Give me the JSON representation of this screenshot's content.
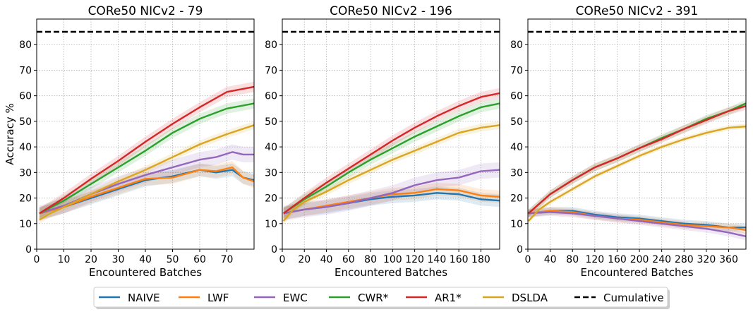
{
  "chart_data": [
    {
      "type": "line",
      "title": "CORe50 NICv2 - 79",
      "xlabel": "Encountered Batches",
      "ylabel": "Accuracy %",
      "xlim": [
        0,
        80
      ],
      "ylim": [
        0,
        90
      ],
      "xticks": [
        0,
        10,
        20,
        30,
        40,
        50,
        60,
        70
      ],
      "yticks": [
        0,
        10,
        20,
        30,
        40,
        50,
        60,
        70,
        80
      ],
      "grid": true,
      "series": [
        {
          "name": "NAIVE",
          "color": "#1f77b4",
          "band": 2.5,
          "points": [
            [
              1,
              14
            ],
            [
              10,
              16.5
            ],
            [
              20,
              20
            ],
            [
              30,
              23.5
            ],
            [
              40,
              27
            ],
            [
              50,
              28.5
            ],
            [
              60,
              31
            ],
            [
              66,
              30
            ],
            [
              72,
              31
            ],
            [
              76,
              28
            ],
            [
              80,
              27
            ]
          ]
        },
        {
          "name": "LWF",
          "color": "#ff7f0e",
          "band": 2.5,
          "points": [
            [
              1,
              14
            ],
            [
              10,
              16.5
            ],
            [
              20,
              20.5
            ],
            [
              30,
              24
            ],
            [
              40,
              27.5
            ],
            [
              50,
              28
            ],
            [
              60,
              31
            ],
            [
              66,
              30.5
            ],
            [
              72,
              32
            ],
            [
              76,
              28
            ],
            [
              80,
              26.5
            ]
          ]
        },
        {
          "name": "EWC",
          "color": "#9467bd",
          "band": 3,
          "points": [
            [
              1,
              14
            ],
            [
              10,
              17
            ],
            [
              20,
              21.5
            ],
            [
              30,
              25.5
            ],
            [
              40,
              29
            ],
            [
              50,
              32
            ],
            [
              60,
              35
            ],
            [
              66,
              36
            ],
            [
              72,
              38
            ],
            [
              76,
              37
            ],
            [
              80,
              37
            ]
          ]
        },
        {
          "name": "CWR*",
          "color": "#2ca02c",
          "band": 2,
          "points": [
            [
              1,
              14
            ],
            [
              10,
              19
            ],
            [
              20,
              25.5
            ],
            [
              30,
              32
            ],
            [
              40,
              38.5
            ],
            [
              50,
              45.5
            ],
            [
              60,
              51
            ],
            [
              70,
              55
            ],
            [
              80,
              57
            ]
          ]
        },
        {
          "name": "AR1*",
          "color": "#d62728",
          "band": 2,
          "points": [
            [
              1,
              14
            ],
            [
              10,
              20
            ],
            [
              20,
              27.5
            ],
            [
              30,
              34.5
            ],
            [
              40,
              42
            ],
            [
              50,
              49
            ],
            [
              60,
              55.5
            ],
            [
              70,
              61.5
            ],
            [
              80,
              63.5
            ]
          ]
        },
        {
          "name": "DSLDA",
          "color": "#daa520",
          "band": 1.5,
          "points": [
            [
              1,
              11.5
            ],
            [
              5,
              14
            ],
            [
              10,
              16.5
            ],
            [
              20,
              21.5
            ],
            [
              30,
              26.5
            ],
            [
              40,
              31
            ],
            [
              50,
              36
            ],
            [
              60,
              41
            ],
            [
              70,
              45
            ],
            [
              80,
              48.5
            ]
          ]
        },
        {
          "name": "Cumulative",
          "color": "#000000",
          "dashed": true,
          "points": [
            [
              0,
              85
            ],
            [
              80,
              85
            ]
          ]
        }
      ]
    },
    {
      "type": "line",
      "title": "CORe50 NICv2 - 196",
      "xlabel": "Encountered Batches",
      "ylabel": "",
      "xlim": [
        0,
        197
      ],
      "ylim": [
        0,
        90
      ],
      "xticks": [
        0,
        20,
        40,
        60,
        80,
        100,
        120,
        140,
        160,
        180
      ],
      "yticks": [
        0,
        10,
        20,
        30,
        40,
        50,
        60,
        70,
        80
      ],
      "grid": true,
      "series": [
        {
          "name": "NAIVE",
          "color": "#1f77b4",
          "band": 2.5,
          "points": [
            [
              1,
              14
            ],
            [
              20,
              15.5
            ],
            [
              40,
              16.5
            ],
            [
              60,
              18
            ],
            [
              80,
              19.5
            ],
            [
              100,
              20.5
            ],
            [
              120,
              21
            ],
            [
              140,
              22
            ],
            [
              160,
              21.5
            ],
            [
              180,
              19.5
            ],
            [
              197,
              19
            ]
          ]
        },
        {
          "name": "LWF",
          "color": "#ff7f0e",
          "band": 2.5,
          "points": [
            [
              1,
              14
            ],
            [
              20,
              15.5
            ],
            [
              40,
              17
            ],
            [
              60,
              18.5
            ],
            [
              80,
              20
            ],
            [
              100,
              21.5
            ],
            [
              120,
              22
            ],
            [
              140,
              23.5
            ],
            [
              160,
              23
            ],
            [
              180,
              21
            ],
            [
              197,
              20.5
            ]
          ]
        },
        {
          "name": "EWC",
          "color": "#9467bd",
          "band": 3,
          "points": [
            [
              1,
              14
            ],
            [
              20,
              15.5
            ],
            [
              40,
              16.5
            ],
            [
              60,
              18
            ],
            [
              80,
              20
            ],
            [
              100,
              22
            ],
            [
              120,
              25
            ],
            [
              140,
              27
            ],
            [
              160,
              28
            ],
            [
              180,
              30.5
            ],
            [
              197,
              31
            ]
          ]
        },
        {
          "name": "CWR*",
          "color": "#2ca02c",
          "band": 2,
          "points": [
            [
              1,
              14
            ],
            [
              20,
              19.5
            ],
            [
              40,
              24.5
            ],
            [
              60,
              30
            ],
            [
              80,
              35
            ],
            [
              100,
              39.5
            ],
            [
              120,
              44
            ],
            [
              140,
              48
            ],
            [
              160,
              52
            ],
            [
              180,
              55.5
            ],
            [
              197,
              57
            ]
          ]
        },
        {
          "name": "AR1*",
          "color": "#d62728",
          "band": 2,
          "points": [
            [
              1,
              14
            ],
            [
              20,
              20
            ],
            [
              40,
              26
            ],
            [
              60,
              31.5
            ],
            [
              80,
              37
            ],
            [
              100,
              42.5
            ],
            [
              120,
              47.5
            ],
            [
              140,
              52
            ],
            [
              160,
              56
            ],
            [
              180,
              59.5
            ],
            [
              197,
              61
            ]
          ]
        },
        {
          "name": "DSLDA",
          "color": "#daa520",
          "band": 1.5,
          "points": [
            [
              1,
              11
            ],
            [
              10,
              15.5
            ],
            [
              20,
              18.5
            ],
            [
              40,
              22.5
            ],
            [
              60,
              27
            ],
            [
              80,
              31
            ],
            [
              100,
              35
            ],
            [
              120,
              38.5
            ],
            [
              140,
              42
            ],
            [
              160,
              45.5
            ],
            [
              180,
              47.5
            ],
            [
              197,
              48.5
            ]
          ]
        },
        {
          "name": "Cumulative",
          "color": "#000000",
          "dashed": true,
          "points": [
            [
              0,
              85
            ],
            [
              197,
              85
            ]
          ]
        }
      ]
    },
    {
      "type": "line",
      "title": "CORe50 NICv2 - 391",
      "xlabel": "Encountered Batches",
      "ylabel": "",
      "xlim": [
        0,
        391
      ],
      "ylim": [
        0,
        90
      ],
      "xticks": [
        0,
        40,
        80,
        120,
        160,
        200,
        240,
        280,
        320,
        360
      ],
      "yticks": [
        0,
        10,
        20,
        30,
        40,
        50,
        60,
        70,
        80
      ],
      "grid": true,
      "series": [
        {
          "name": "NAIVE",
          "color": "#1f77b4",
          "band": 1.5,
          "points": [
            [
              1,
              14
            ],
            [
              40,
              15
            ],
            [
              80,
              15
            ],
            [
              120,
              13.5
            ],
            [
              160,
              12.5
            ],
            [
              200,
              12
            ],
            [
              240,
              11
            ],
            [
              280,
              10
            ],
            [
              320,
              9.5
            ],
            [
              360,
              8.5
            ],
            [
              391,
              8.5
            ]
          ]
        },
        {
          "name": "LWF",
          "color": "#ff7f0e",
          "band": 1.5,
          "points": [
            [
              1,
              14
            ],
            [
              40,
              15
            ],
            [
              80,
              14.5
            ],
            [
              120,
              13
            ],
            [
              160,
              12
            ],
            [
              200,
              11.5
            ],
            [
              240,
              10.5
            ],
            [
              280,
              9.5
            ],
            [
              320,
              9
            ],
            [
              360,
              8.5
            ],
            [
              391,
              7.5
            ]
          ]
        },
        {
          "name": "EWC",
          "color": "#9467bd",
          "band": 1.5,
          "points": [
            [
              1,
              14
            ],
            [
              40,
              14.5
            ],
            [
              80,
              14
            ],
            [
              120,
              13
            ],
            [
              160,
              12
            ],
            [
              200,
              11
            ],
            [
              240,
              10
            ],
            [
              280,
              9
            ],
            [
              320,
              8
            ],
            [
              360,
              6.5
            ],
            [
              391,
              5
            ]
          ]
        },
        {
          "name": "CWR*",
          "color": "#2ca02c",
          "band": 1.5,
          "points": [
            [
              1,
              14
            ],
            [
              40,
              21.5
            ],
            [
              80,
              27
            ],
            [
              120,
              32
            ],
            [
              160,
              35.5
            ],
            [
              200,
              39.5
            ],
            [
              240,
              43.5
            ],
            [
              280,
              47
            ],
            [
              320,
              51
            ],
            [
              360,
              54
            ],
            [
              391,
              57
            ]
          ]
        },
        {
          "name": "AR1*",
          "color": "#d62728",
          "band": 1.5,
          "points": [
            [
              1,
              14
            ],
            [
              40,
              21.5
            ],
            [
              80,
              27
            ],
            [
              120,
              32
            ],
            [
              160,
              35.5
            ],
            [
              200,
              39.5
            ],
            [
              240,
              43
            ],
            [
              280,
              47
            ],
            [
              320,
              50.5
            ],
            [
              360,
              54
            ],
            [
              391,
              56
            ]
          ]
        },
        {
          "name": "DSLDA",
          "color": "#daa520",
          "band": 1,
          "points": [
            [
              1,
              11
            ],
            [
              20,
              15.5
            ],
            [
              40,
              18.5
            ],
            [
              80,
              23.5
            ],
            [
              120,
              28.5
            ],
            [
              160,
              32.5
            ],
            [
              200,
              36.5
            ],
            [
              240,
              40
            ],
            [
              280,
              43
            ],
            [
              320,
              45.5
            ],
            [
              360,
              47.5
            ],
            [
              391,
              48
            ]
          ]
        },
        {
          "name": "Cumulative",
          "color": "#000000",
          "dashed": true,
          "points": [
            [
              0,
              85
            ],
            [
              391,
              85
            ]
          ]
        }
      ]
    }
  ],
  "legend": {
    "position": "bottom-center",
    "items": [
      {
        "label": "NAIVE",
        "color": "#1f77b4",
        "dashed": false
      },
      {
        "label": "LWF",
        "color": "#ff7f0e",
        "dashed": false
      },
      {
        "label": "EWC",
        "color": "#9467bd",
        "dashed": false
      },
      {
        "label": "CWR*",
        "color": "#2ca02c",
        "dashed": false
      },
      {
        "label": "AR1*",
        "color": "#d62728",
        "dashed": false
      },
      {
        "label": "DSLDA",
        "color": "#daa520",
        "dashed": false
      },
      {
        "label": "Cumulative",
        "color": "#000000",
        "dashed": true
      }
    ]
  }
}
